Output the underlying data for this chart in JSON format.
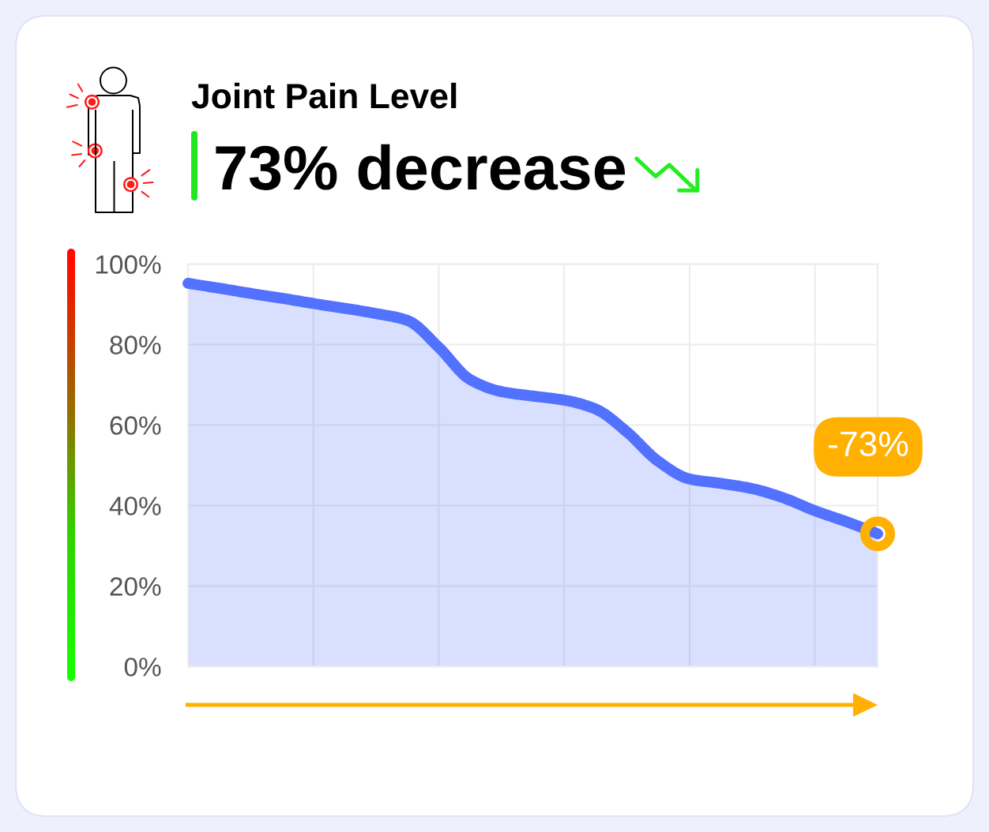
{
  "chart_data": {
    "type": "area",
    "title": "Joint Pain Level",
    "subtitle": "73% decrease",
    "categories": [
      null,
      null,
      null,
      null,
      null,
      null,
      null,
      null,
      null,
      null,
      null,
      null,
      null,
      null,
      null,
      null,
      null,
      null,
      null,
      null,
      null,
      null,
      null
    ],
    "values": [
      95.2,
      94,
      92.7,
      91.5,
      90.2,
      89,
      87.7,
      86,
      79.3,
      71.3,
      68.3,
      67.2,
      66.2,
      64,
      58.3,
      51,
      46.6,
      45.5,
      44.2,
      41.9,
      38.7,
      36,
      33
    ],
    "color": "#5271ff",
    "ylim": [
      0,
      100
    ],
    "yticks": [
      {
        "value": 0,
        "label": "0%"
      },
      {
        "value": 20,
        "label": "20%"
      },
      {
        "value": 40,
        "label": "40%"
      },
      {
        "value": 60,
        "label": "60%"
      },
      {
        "value": 80,
        "label": "80%"
      },
      {
        "value": 100,
        "label": "100%"
      }
    ],
    "grid": true,
    "annotations": [
      "-73%"
    ]
  }
}
